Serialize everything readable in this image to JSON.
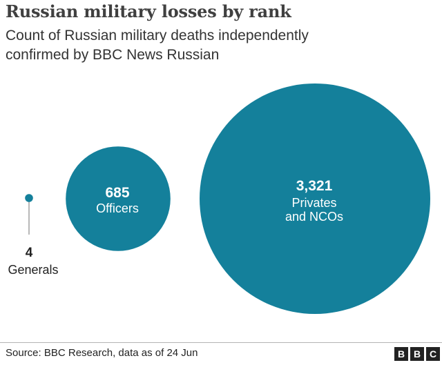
{
  "header": {
    "title": "Russian military losses by rank",
    "subtitle_line1": "Count of Russian military deaths independently",
    "subtitle_line2": "confirmed by BBC News Russian"
  },
  "chart_data": {
    "type": "proportional-area bubble",
    "title": "Russian military losses by rank",
    "subtitle": "Count of Russian military deaths independently confirmed by BBC News Russian",
    "series": [
      {
        "name": "Generals",
        "value": 4,
        "value_label": "4",
        "label_lines": [
          "Generals"
        ]
      },
      {
        "name": "Officers",
        "value": 685,
        "value_label": "685",
        "label_lines": [
          "Officers"
        ]
      },
      {
        "name": "Privates and NCOs",
        "value": 3321,
        "value_label": "3,321",
        "label_lines": [
          "Privates",
          "and NCOs"
        ]
      }
    ],
    "colors": {
      "bubble": "#14809b",
      "leader": "#888888",
      "outside_text": "#222222",
      "inside_text": "#ffffff"
    }
  },
  "footer": {
    "source": "Source: BBC Research, data as of 24 Jun",
    "logo_letters": [
      "B",
      "B",
      "C"
    ]
  }
}
